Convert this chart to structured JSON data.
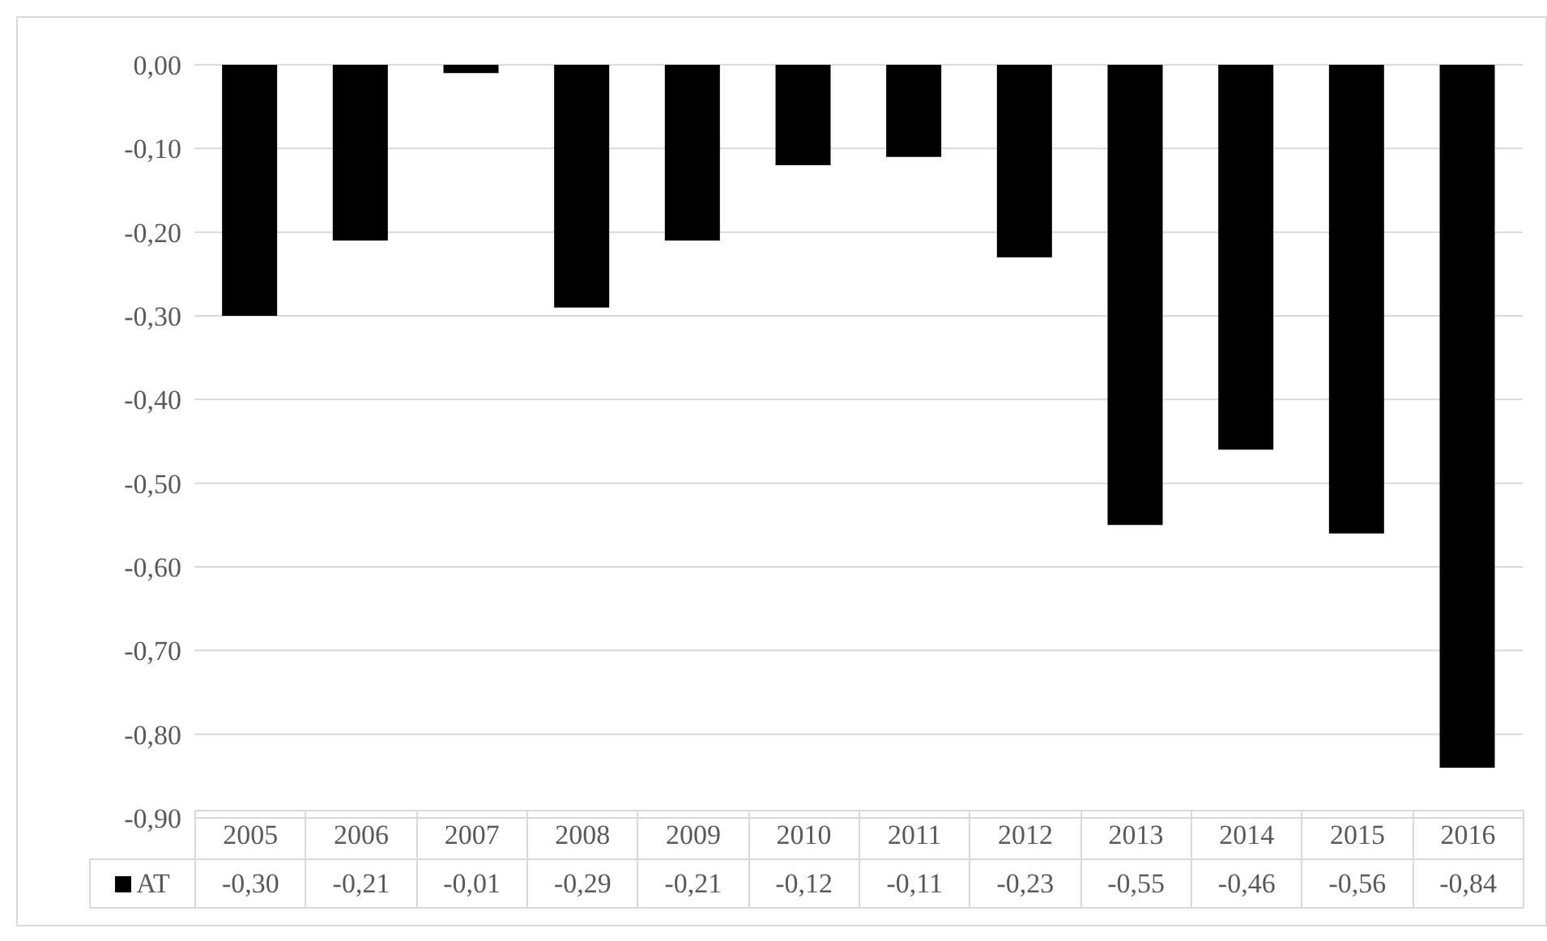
{
  "chart_data": {
    "type": "bar",
    "categories": [
      "2005",
      "2006",
      "2007",
      "2008",
      "2009",
      "2010",
      "2011",
      "2012",
      "2013",
      "2014",
      "2015",
      "2016"
    ],
    "series": [
      {
        "name": "AT",
        "color": "#000000",
        "values": [
          -0.3,
          -0.21,
          -0.01,
          -0.29,
          -0.21,
          -0.12,
          -0.11,
          -0.23,
          -0.55,
          -0.46,
          -0.56,
          -0.84
        ]
      }
    ],
    "ylim": [
      -0.9,
      0
    ],
    "yticks": [
      {
        "value": 0,
        "label": "0,00"
      },
      {
        "value": -0.1,
        "label": "-0,10"
      },
      {
        "value": -0.2,
        "label": "-0,20"
      },
      {
        "value": -0.3,
        "label": "-0,30"
      },
      {
        "value": -0.4,
        "label": "-0,40"
      },
      {
        "value": -0.5,
        "label": "-0,50"
      },
      {
        "value": -0.6,
        "label": "-0,60"
      },
      {
        "value": -0.7,
        "label": "-0,70"
      },
      {
        "value": -0.8,
        "label": "-0,80"
      },
      {
        "value": -0.9,
        "label": "-0,90"
      }
    ],
    "grid": "y",
    "value_labels": [
      "-0,30",
      "-0,21",
      "-0,01",
      "-0,29",
      "-0,21",
      "-0,12",
      "-0,11",
      "-0,23",
      "-0,55",
      "-0,46",
      "-0,56",
      "-0,84"
    ]
  }
}
